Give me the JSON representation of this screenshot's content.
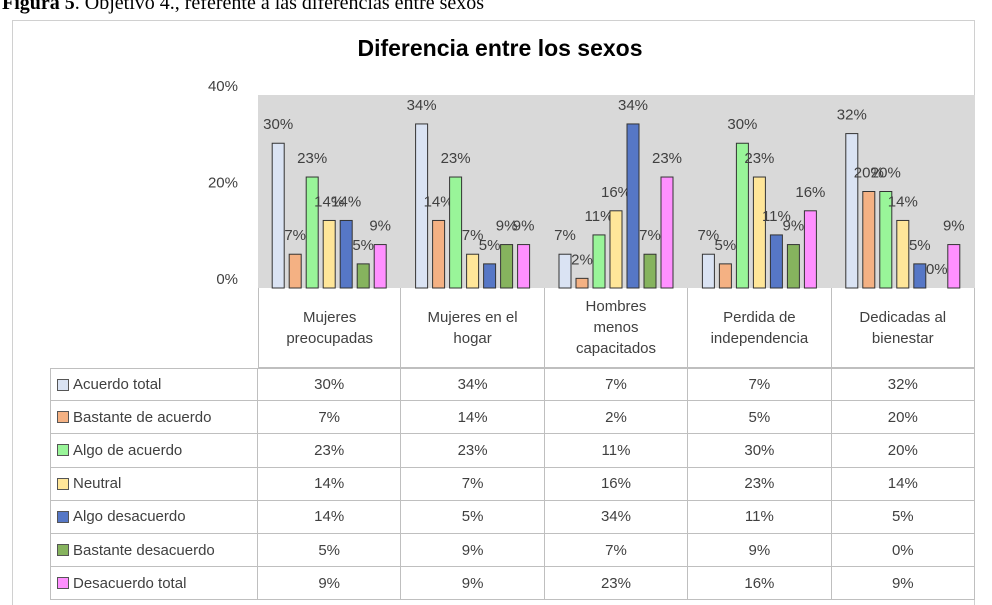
{
  "caption": {
    "label": "Figura 5",
    "text": ". Objetivo 4., referente a las diferencias entre sexos"
  },
  "chart_data": {
    "type": "bar",
    "title": "Diferencia entre los sexos",
    "categories": [
      "Mujeres preocupadas",
      "Mujeres en el hogar",
      "Hombres menos capacitados",
      "Perdida de independencia",
      "Dedicadas al bienestar"
    ],
    "ylim": [
      0,
      40
    ],
    "yticks": [
      {
        "value": 0,
        "label": "0%"
      },
      {
        "value": 20,
        "label": "20%"
      },
      {
        "value": 40,
        "label": "40%"
      }
    ],
    "grid": false,
    "series": [
      {
        "name": "Acuerdo total",
        "color": "#dae3f3",
        "values": [
          30,
          34,
          7,
          7,
          32
        ],
        "value_labels": [
          "30%",
          "34%",
          "7%",
          "7%",
          "32%"
        ]
      },
      {
        "name": "Bastante de acuerdo",
        "color": "#f4b183",
        "values": [
          7,
          14,
          2,
          5,
          20
        ],
        "value_labels": [
          "7%",
          "14%",
          "2%",
          "5%",
          "20%"
        ]
      },
      {
        "name": "Algo de acuerdo",
        "color": "#99f599",
        "values": [
          23,
          23,
          11,
          30,
          20
        ],
        "value_labels": [
          "23%",
          "23%",
          "11%",
          "30%",
          "20%"
        ]
      },
      {
        "name": "Neutral",
        "color": "#ffe699",
        "values": [
          14,
          7,
          16,
          23,
          14
        ],
        "value_labels": [
          "14%",
          "7%",
          "16%",
          "23%",
          "14%"
        ]
      },
      {
        "name": "Algo desacuerdo",
        "color": "#5677c6",
        "values": [
          14,
          5,
          34,
          11,
          5
        ],
        "value_labels": [
          "14%",
          "5%",
          "34%",
          "11%",
          "5%"
        ]
      },
      {
        "name": "Bastante desacuerdo",
        "color": "#86b35e",
        "values": [
          5,
          9,
          7,
          9,
          0
        ],
        "value_labels": [
          "5%",
          "9%",
          "7%",
          "9%",
          "0%"
        ]
      },
      {
        "name": "Desacuerdo total",
        "color": "#ff90ff",
        "values": [
          9,
          9,
          23,
          16,
          9
        ],
        "value_labels": [
          "9%",
          "9%",
          "23%",
          "16%",
          "9%"
        ]
      }
    ]
  }
}
